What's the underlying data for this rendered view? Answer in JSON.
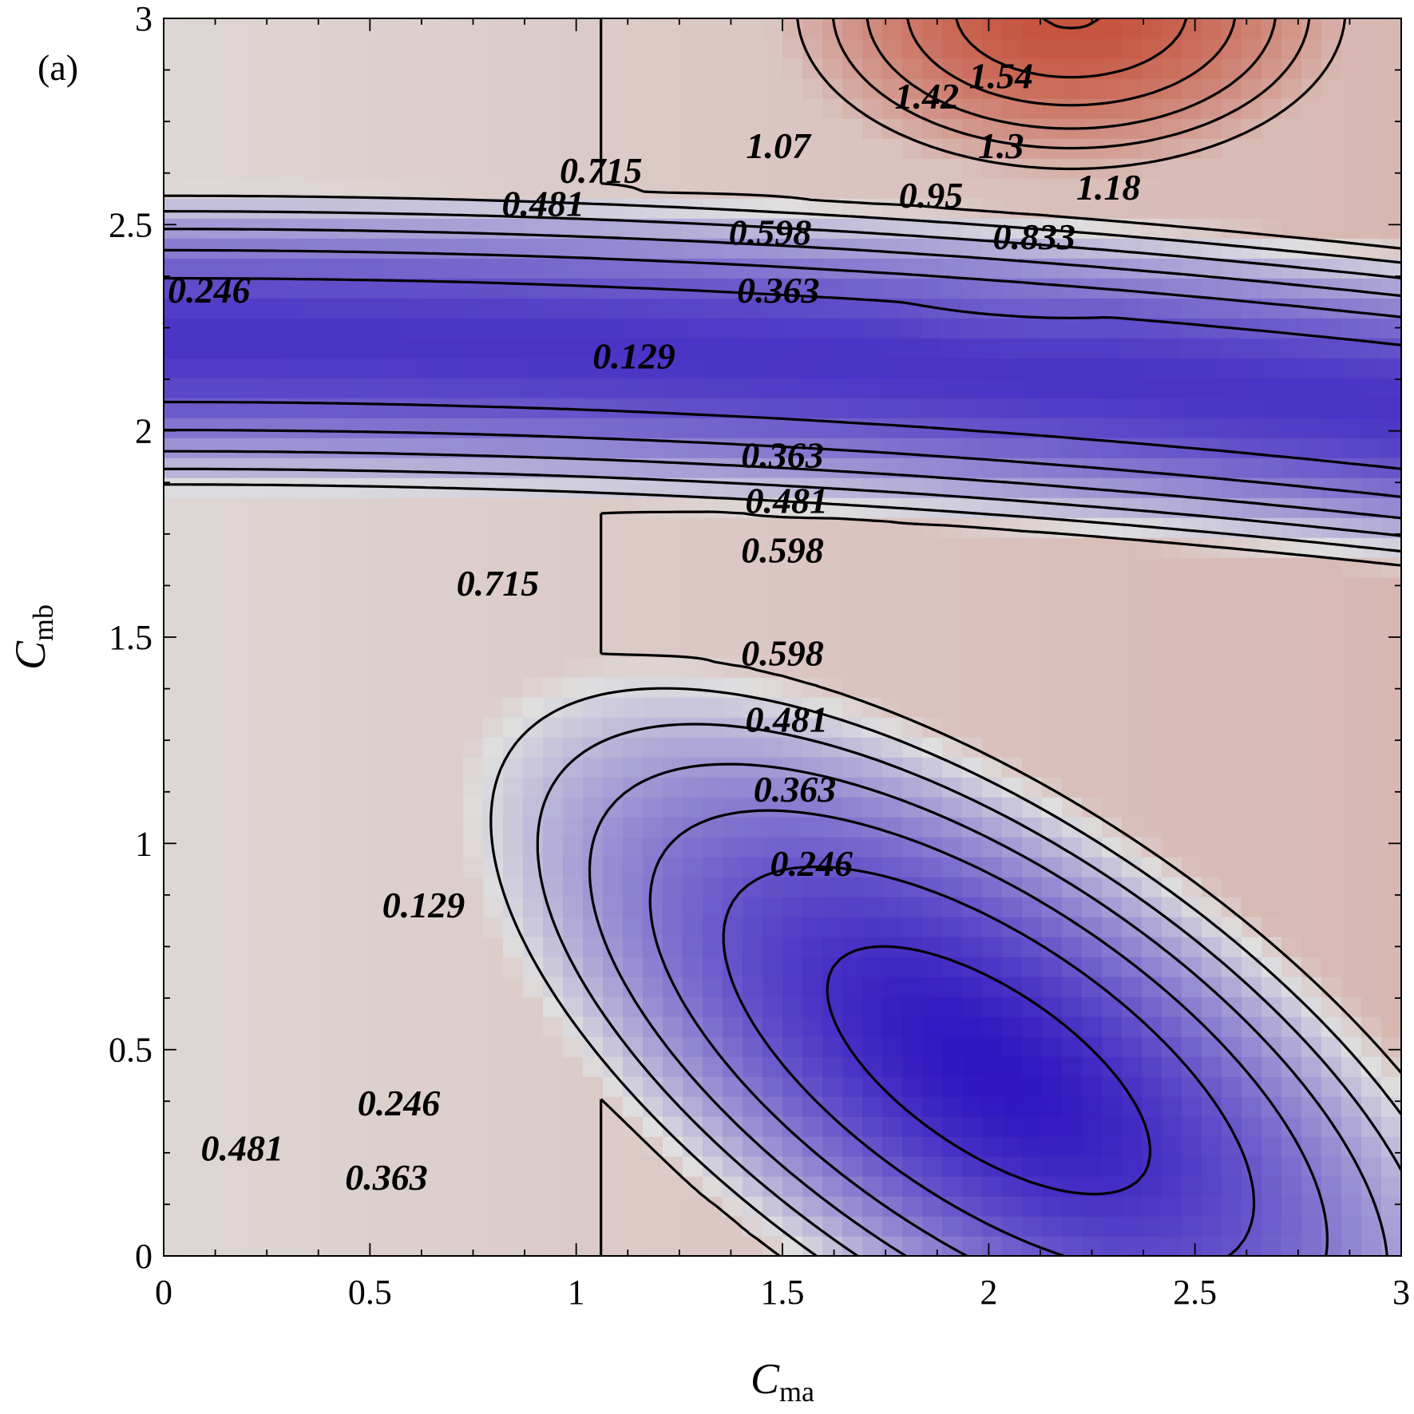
{
  "panel_label": "(a)",
  "chart_data": {
    "type": "heatmap",
    "title": "",
    "xlabel": {
      "main": "C",
      "sub": "ma"
    },
    "ylabel": {
      "main": "C",
      "sub": "mb"
    },
    "xlim": [
      0,
      3
    ],
    "ylim": [
      0,
      3
    ],
    "x_ticks": [
      0,
      0.5,
      1,
      1.5,
      2,
      2.5,
      3
    ],
    "y_ticks": [
      0,
      0.5,
      1,
      1.5,
      2,
      2.5,
      3
    ],
    "x_tick_labels": [
      "0",
      "0.5",
      "1",
      "1.5",
      "2",
      "2.5",
      "3"
    ],
    "y_tick_labels": [
      "0",
      "0.5",
      "1",
      "1.5",
      "2",
      "2.5",
      "3"
    ],
    "colormap": {
      "low": "#2a0fbf",
      "mid": "#dfdfdf",
      "high": "#c44a33"
    },
    "contour_levels": [
      0.129,
      0.246,
      0.363,
      0.481,
      0.598,
      0.715,
      0.833,
      0.95,
      1.07,
      1.18,
      1.3,
      1.42,
      1.54
    ],
    "contour_labels": [
      {
        "text": "1.54",
        "x": 2.03,
        "y": 2.86
      },
      {
        "text": "1.42",
        "x": 1.85,
        "y": 2.81
      },
      {
        "text": "1.3",
        "x": 2.03,
        "y": 2.69
      },
      {
        "text": "1.18",
        "x": 2.29,
        "y": 2.59
      },
      {
        "text": "1.07",
        "x": 1.49,
        "y": 2.69
      },
      {
        "text": "0.95",
        "x": 1.86,
        "y": 2.57
      },
      {
        "text": "0.833",
        "x": 2.11,
        "y": 2.47
      },
      {
        "text": "0.715",
        "x": 1.06,
        "y": 2.63
      },
      {
        "text": "0.598",
        "x": 1.47,
        "y": 2.48
      },
      {
        "text": "0.481",
        "x": 0.92,
        "y": 2.55
      },
      {
        "text": "0.363",
        "x": 1.49,
        "y": 2.34
      },
      {
        "text": "0.246",
        "x": 0.11,
        "y": 2.34
      },
      {
        "text": "0.129",
        "x": 1.14,
        "y": 2.18
      },
      {
        "text": "0.363",
        "x": 1.5,
        "y": 1.94
      },
      {
        "text": "0.481",
        "x": 1.51,
        "y": 1.83
      },
      {
        "text": "0.598",
        "x": 1.5,
        "y": 1.71
      },
      {
        "text": "0.715",
        "x": 0.81,
        "y": 1.63
      },
      {
        "text": "0.598",
        "x": 1.5,
        "y": 1.46
      },
      {
        "text": "0.481",
        "x": 1.51,
        "y": 1.3
      },
      {
        "text": "0.363",
        "x": 1.53,
        "y": 1.13
      },
      {
        "text": "0.246",
        "x": 1.57,
        "y": 0.95
      },
      {
        "text": "0.129",
        "x": 0.63,
        "y": 0.85
      },
      {
        "text": "0.246",
        "x": 0.57,
        "y": 0.37
      },
      {
        "text": "0.363",
        "x": 0.54,
        "y": 0.19
      },
      {
        "text": "0.481",
        "x": 0.19,
        "y": 0.26
      }
    ]
  }
}
